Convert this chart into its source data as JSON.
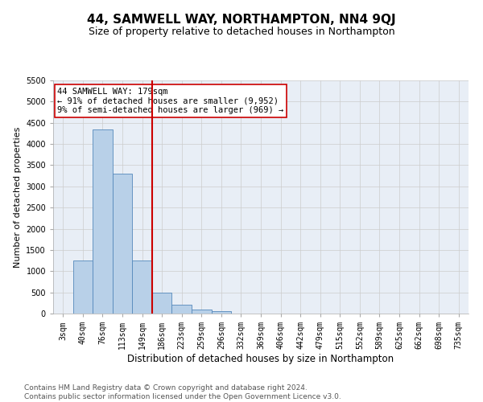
{
  "title": "44, SAMWELL WAY, NORTHAMPTON, NN4 9QJ",
  "subtitle": "Size of property relative to detached houses in Northampton",
  "xlabel": "Distribution of detached houses by size in Northampton",
  "ylabel": "Number of detached properties",
  "categories": [
    "3sqm",
    "40sqm",
    "76sqm",
    "113sqm",
    "149sqm",
    "186sqm",
    "223sqm",
    "259sqm",
    "296sqm",
    "332sqm",
    "369sqm",
    "406sqm",
    "442sqm",
    "479sqm",
    "515sqm",
    "552sqm",
    "589sqm",
    "625sqm",
    "662sqm",
    "698sqm",
    "735sqm"
  ],
  "values": [
    0,
    1250,
    4350,
    3300,
    1250,
    500,
    200,
    100,
    60,
    0,
    0,
    0,
    0,
    0,
    0,
    0,
    0,
    0,
    0,
    0,
    0
  ],
  "bar_color": "#b8d0e8",
  "bar_edge_color": "#5588bb",
  "grid_color": "#cccccc",
  "background_color": "#e8eef6",
  "vline_x_index": 5,
  "vline_color": "#cc0000",
  "annotation_text": "44 SAMWELL WAY: 179sqm\n← 91% of detached houses are smaller (9,952)\n9% of semi-detached houses are larger (969) →",
  "annotation_box_color": "#ffffff",
  "annotation_box_edge_color": "#cc0000",
  "ylim": [
    0,
    5500
  ],
  "yticks": [
    0,
    500,
    1000,
    1500,
    2000,
    2500,
    3000,
    3500,
    4000,
    4500,
    5000,
    5500
  ],
  "footer_line1": "Contains HM Land Registry data © Crown copyright and database right 2024.",
  "footer_line2": "Contains public sector information licensed under the Open Government Licence v3.0.",
  "title_fontsize": 11,
  "subtitle_fontsize": 9,
  "annotation_fontsize": 7.5,
  "footer_fontsize": 6.5,
  "ylabel_fontsize": 8,
  "xlabel_fontsize": 8.5,
  "tick_fontsize": 7
}
